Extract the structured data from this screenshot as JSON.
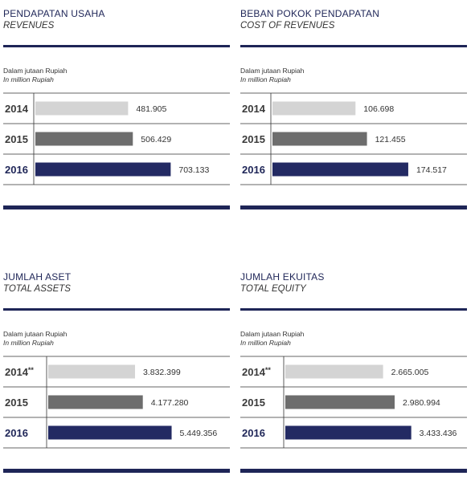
{
  "chart_data": [
    {
      "type": "bar",
      "orientation": "horizontal",
      "title": "PENDAPATAN USAHA",
      "subtitle": "REVENUES",
      "unit_id": "Dalam jutaan Rupiah",
      "unit_en": "In million Rupiah",
      "categories": [
        "2014",
        "2015",
        "2016"
      ],
      "values": [
        481905,
        506429,
        703133
      ],
      "value_labels": [
        "481.905",
        "506.429",
        "703.133"
      ],
      "xlim": [
        0,
        760000
      ]
    },
    {
      "type": "bar",
      "orientation": "horizontal",
      "title": "BEBAN POKOK PENDAPATAN",
      "subtitle": "COST OF REVENUES",
      "unit_id": "Dalam jutaan Rupiah",
      "unit_en": "In million Rupiah",
      "categories": [
        "2014",
        "2015",
        "2016"
      ],
      "values": [
        106698,
        121455,
        174517
      ],
      "value_labels": [
        "106.698",
        "121.455",
        "174.517"
      ],
      "xlim": [
        0,
        188000
      ]
    },
    {
      "type": "bar",
      "orientation": "horizontal",
      "title": "JUMLAH ASET",
      "subtitle": "TOTAL ASSETS",
      "unit_id": "Dalam jutaan Rupiah",
      "unit_en": "In million Rupiah",
      "categories": [
        "2014**",
        "2015",
        "2016"
      ],
      "values": [
        3832399,
        4177280,
        5449356
      ],
      "value_labels": [
        "3.832.399",
        "4.177.280",
        "5.449.356"
      ],
      "xlim": [
        0,
        5750000
      ]
    },
    {
      "type": "bar",
      "orientation": "horizontal",
      "title": "JUMLAH EKUITAS",
      "subtitle": "TOTAL EQUITY",
      "unit_id": "Dalam jutaan Rupiah",
      "unit_en": "In million Rupiah",
      "categories": [
        "2014**",
        "2015",
        "2016"
      ],
      "values": [
        2665005,
        2980994,
        3433436
      ],
      "value_labels": [
        "2.665.005",
        "2.980.994",
        "3.433.436"
      ],
      "xlim": [
        0,
        3550000
      ]
    }
  ],
  "colors": {
    "bar_2014": "#d4d4d4",
    "bar_2015": "#6d6d6d",
    "bar_2016": "#232a63",
    "accent": "#1e2557",
    "rule": "#333333"
  }
}
